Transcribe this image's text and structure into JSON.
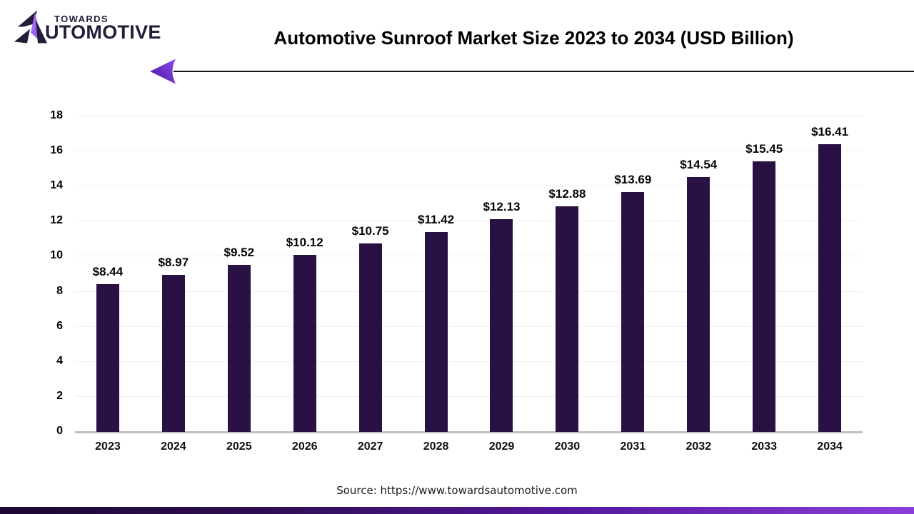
{
  "brand": {
    "logo_word_top": "TOWARDS",
    "logo_word_bottom": "UTOMOTIVE",
    "logo_dark_color": "#231d3a",
    "logo_purple_color": "#9b5df2"
  },
  "header": {
    "title": "Automotive Sunroof Market Size 2023 to 2034 (USD Billion)"
  },
  "chart_data": {
    "type": "bar",
    "title": "Automotive Sunroof Market Size 2023 to 2034 (USD Billion)",
    "unit": "USD Billion",
    "categories": [
      "2023",
      "2024",
      "2025",
      "2026",
      "2027",
      "2028",
      "2029",
      "2030",
      "2031",
      "2032",
      "2033",
      "2034"
    ],
    "values": [
      8.44,
      8.97,
      9.52,
      10.12,
      10.75,
      11.42,
      12.13,
      12.88,
      13.69,
      14.54,
      15.45,
      16.41
    ],
    "value_labels": [
      "$8.44",
      "$8.97",
      "$9.52",
      "$10.12",
      "$10.75",
      "$11.42",
      "$12.13",
      "$12.88",
      "$13.69",
      "$14.54",
      "$15.45",
      "$16.41"
    ],
    "ylim": [
      0,
      18
    ],
    "yticks": [
      0,
      2,
      4,
      6,
      8,
      10,
      12,
      14,
      16,
      18
    ],
    "grid": true,
    "legend_position": "none",
    "bar_color": "#2a1144",
    "gridline_color": "#f0f0f0",
    "axis_line_color": "#c0c0c0"
  },
  "footer": {
    "source": "Source: https://www.towardsautomotive.com"
  },
  "decor": {
    "arrow_line_color": "#141414",
    "arrow_head_gradient": [
      "#45179b",
      "#8f4bf2"
    ],
    "bottom_bar_gradient": [
      "#1d0833",
      "#8b3fd8"
    ]
  }
}
